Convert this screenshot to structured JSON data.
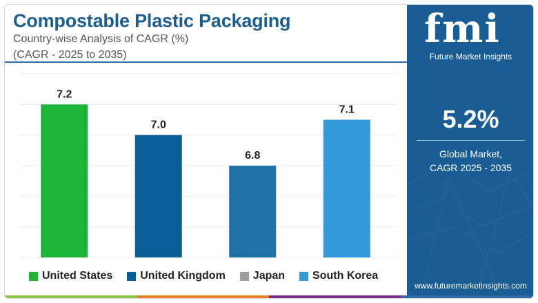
{
  "header": {
    "title": "Compostable Plastic Packaging",
    "subtitle": "Country-wise Analysis of CAGR (%)",
    "period": "(CAGR - 2025 to 2035)"
  },
  "chart_data": {
    "type": "bar",
    "categories": [
      "United States",
      "United Kingdom",
      "Japan",
      "South Korea"
    ],
    "values": [
      7.2,
      7.0,
      6.8,
      7.1
    ],
    "data_labels": [
      "7.2",
      "7.0",
      "6.8",
      "7.1"
    ],
    "colors": [
      "#1db43a",
      "#0b5d98",
      "#1f6fa8",
      "#3399d9"
    ],
    "legend_colors": [
      "#1db43a",
      "#0b5d98",
      "#9e9e9e",
      "#3399d9"
    ],
    "ylim": [
      6.2,
      7.4
    ],
    "grid": true,
    "legend_position": "bottom",
    "title": "",
    "xlabel": "",
    "ylabel": ""
  },
  "side_panel": {
    "logo_text": "fmi",
    "logo_tagline": "Future Market Insights",
    "global_value": "5.2%",
    "global_caption_line1": "Global Market,",
    "global_caption_line2": "CAGR 2025 - 2035",
    "website": "www.futuremarketinsights.com",
    "background_color": "#1a5d94"
  },
  "strip_colors": [
    "#8bc34a",
    "#e67e22",
    "#7b2d8e",
    "#2b6ea3"
  ]
}
